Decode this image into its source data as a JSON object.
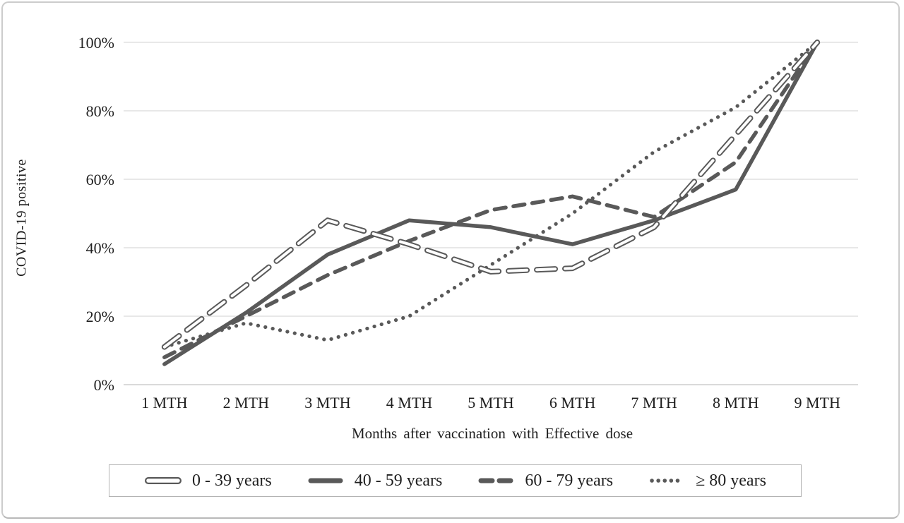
{
  "chart_data": {
    "type": "line",
    "title": "",
    "xlabel": "Months after vaccination with Effective dose",
    "ylabel": "COVID-19 positive",
    "categories": [
      "1 MTH",
      "2 MTH",
      "3 MTH",
      "4 MTH",
      "5 MTH",
      "6 MTH",
      "7 MTH",
      "8 MTH",
      "9 MTH"
    ],
    "ytick_labels": [
      "0%",
      "20%",
      "40%",
      "60%",
      "80%",
      "100%"
    ],
    "yticks": [
      0,
      20,
      40,
      60,
      80,
      100
    ],
    "ylim": [
      0,
      100
    ],
    "grid": "horizontal-only",
    "legend_position": "bottom-box",
    "series": [
      {
        "name": "0 - 39 years",
        "style": "outline-long-dash",
        "values": [
          11,
          29,
          48,
          41,
          33,
          34,
          46,
          73,
          100
        ]
      },
      {
        "name": "40 - 59 years",
        "style": "solid",
        "values": [
          6,
          21,
          38,
          48,
          46,
          41,
          48,
          57,
          100
        ]
      },
      {
        "name": "60 - 79 years",
        "style": "dashed",
        "values": [
          8,
          20,
          32,
          42,
          51,
          55,
          49,
          65,
          100
        ]
      },
      {
        "name": "≥ 80 years",
        "style": "dotted",
        "values": [
          11,
          18,
          13,
          20,
          35,
          50,
          68,
          81,
          100
        ]
      }
    ]
  },
  "colors": {
    "line": "#595959",
    "grid": "#d9d9d9",
    "axis": "#c3c3c3",
    "tick_text": "#1f1f1f"
  }
}
